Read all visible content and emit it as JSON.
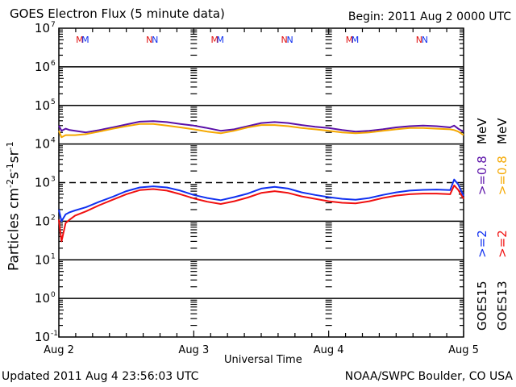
{
  "header": {
    "title": "GOES Electron Flux (5 minute data)",
    "begin": "Begin: 2011 Aug 2 0000 UTC"
  },
  "footer": {
    "updated": "Updated 2011 Aug  4 23:56:03 UTC",
    "credit": "NOAA/SWPC Boulder, CO USA"
  },
  "colors": {
    "goes15_08": "#5a10a8",
    "goes13_08": "#f5a800",
    "goes15_2": "#1030f0",
    "goes13_2": "#f01010",
    "axis": "#000000"
  },
  "chart_data": {
    "type": "line",
    "title": "GOES Electron Flux (5 minute data)",
    "xlabel": "Universal Time",
    "ylabel": "Particles cm-2 s-1 sr-1",
    "yscale": "log",
    "ylim": [
      0.1,
      10000000
    ],
    "xlim": [
      0,
      3
    ],
    "x_ticks": [
      {
        "x": 0,
        "label": "Aug 2"
      },
      {
        "x": 1,
        "label": "Aug 3"
      },
      {
        "x": 2,
        "label": "Aug 4"
      },
      {
        "x": 3,
        "label": "Aug 5"
      }
    ],
    "y_ticks": [
      {
        "exp": 7,
        "label": "10",
        "sup": "7"
      },
      {
        "exp": 6,
        "label": "10",
        "sup": "6"
      },
      {
        "exp": 5,
        "label": "10",
        "sup": "5"
      },
      {
        "exp": 4,
        "label": "10",
        "sup": "4"
      },
      {
        "exp": 3,
        "label": "10",
        "sup": "3"
      },
      {
        "exp": 2,
        "label": "10",
        "sup": "2"
      },
      {
        "exp": 1,
        "label": "10",
        "sup": "1"
      },
      {
        "exp": 0,
        "label": "10",
        "sup": "0"
      },
      {
        "exp": -1,
        "label": "10",
        "sup": "-1"
      }
    ],
    "threshold": {
      "value": 1000,
      "style": "dashed"
    },
    "grid": "horizontal decade lines",
    "annotations": [
      {
        "x": 0.18,
        "text": "M",
        "colors": [
          "red",
          "blue"
        ]
      },
      {
        "x": 0.7,
        "text": "N",
        "colors": [
          "red",
          "blue"
        ]
      },
      {
        "x": 1.18,
        "text": "M",
        "colors": [
          "red",
          "blue"
        ]
      },
      {
        "x": 1.7,
        "text": "N",
        "colors": [
          "red",
          "blue"
        ]
      },
      {
        "x": 2.18,
        "text": "M",
        "colors": [
          "red",
          "blue"
        ]
      },
      {
        "x": 2.7,
        "text": "N",
        "colors": [
          "red",
          "blue"
        ]
      }
    ],
    "legend": {
      "placement": "right-vertical",
      "entries": [
        {
          "text": "GOES15",
          "color": "#000000",
          "column": 1
        },
        {
          "text": ">=2",
          "color": "#1030f0",
          "column": 1
        },
        {
          "text": ">=0.8",
          "color": "#5a10a8",
          "column": 1
        },
        {
          "text": "MeV",
          "color": "#000000",
          "column": 1
        },
        {
          "text": "GOES13",
          "color": "#000000",
          "column": 2
        },
        {
          "text": ">=2",
          "color": "#f01010",
          "column": 2
        },
        {
          "text": ">=0.8",
          "color": "#f5a800",
          "column": 2
        },
        {
          "text": "MeV",
          "color": "#000000",
          "column": 2
        }
      ]
    },
    "x": [
      0.0,
      0.02,
      0.05,
      0.08,
      0.12,
      0.2,
      0.3,
      0.4,
      0.5,
      0.6,
      0.7,
      0.8,
      0.9,
      1.0,
      1.1,
      1.2,
      1.3,
      1.4,
      1.5,
      1.6,
      1.7,
      1.8,
      1.9,
      2.0,
      2.1,
      2.2,
      2.3,
      2.4,
      2.5,
      2.6,
      2.7,
      2.8,
      2.9,
      2.93,
      2.96,
      3.0
    ],
    "series": [
      {
        "name": "GOES15 >=0.8 MeV",
        "color": "#5a10a8",
        "values": [
          30000,
          22000,
          25000,
          23000,
          22000,
          20000,
          23000,
          27000,
          32000,
          38000,
          39000,
          37000,
          33000,
          30000,
          26000,
          22000,
          24000,
          29000,
          35000,
          37000,
          35000,
          31000,
          28000,
          26000,
          23000,
          21000,
          22000,
          24000,
          27000,
          29000,
          30000,
          29000,
          27000,
          30000,
          25000,
          21000
        ]
      },
      {
        "name": "GOES13 >=0.8 MeV",
        "color": "#f5a800",
        "values": [
          22000,
          15000,
          17000,
          17000,
          17000,
          18000,
          21000,
          25000,
          29000,
          33000,
          33000,
          30000,
          27000,
          24000,
          21000,
          19000,
          22000,
          27000,
          31000,
          31000,
          29000,
          26000,
          24000,
          22000,
          20000,
          19000,
          20000,
          22000,
          24000,
          26000,
          26000,
          25000,
          24000,
          23000,
          21000,
          17000
        ]
      },
      {
        "name": "GOES15 >=2 MeV",
        "color": "#1030f0",
        "values": [
          200,
          100,
          150,
          170,
          190,
          230,
          320,
          430,
          600,
          750,
          800,
          750,
          620,
          480,
          400,
          350,
          420,
          520,
          700,
          780,
          700,
          560,
          480,
          420,
          380,
          360,
          400,
          480,
          560,
          620,
          650,
          660,
          640,
          1200,
          900,
          450
        ]
      },
      {
        "name": "GOES13 >=2 MeV",
        "color": "#f01010",
        "values": [
          110,
          30,
          90,
          110,
          140,
          180,
          260,
          360,
          500,
          640,
          680,
          620,
          500,
          390,
          320,
          280,
          330,
          410,
          540,
          600,
          540,
          440,
          380,
          330,
          300,
          290,
          330,
          400,
          460,
          500,
          520,
          520,
          500,
          850,
          650,
          380
        ]
      }
    ]
  }
}
